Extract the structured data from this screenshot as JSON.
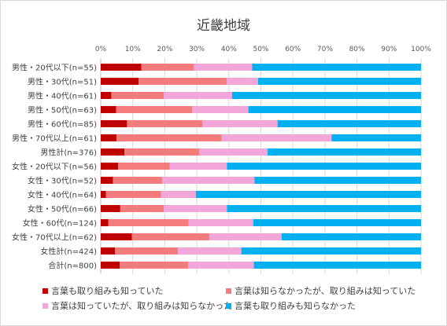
{
  "chart_data": {
    "type": "bar",
    "orientation": "horizontal",
    "stacked": "percent",
    "title": "近畿地域",
    "xlim": [
      0,
      100
    ],
    "x_ticks": [
      "0%",
      "10%",
      "20%",
      "30%",
      "40%",
      "50%",
      "60%",
      "70%",
      "80%",
      "90%",
      "100%"
    ],
    "grid": true,
    "legend_position": "bottom",
    "categories": [
      "男性・20代以下(n=55)",
      "男性・30代(n=51)",
      "男性・40代(n=61)",
      "男性・50代(n=63)",
      "男性・60代(n=85)",
      "男性・70代以上(n=61)",
      "男性計(n=376)",
      "女性・20代以下(n=56)",
      "女性・30代(n=52)",
      "女性・40代(n=64)",
      "女性・50代(n=66)",
      "女性・60代(n=124)",
      "女性・70代以上(n=62)",
      "女性計(n=424)",
      "合計(n=800)"
    ],
    "series": [
      {
        "name": "言葉も取り組みも知っていた",
        "color": "#c00000",
        "values": [
          12.7,
          11.8,
          3.3,
          4.8,
          8.2,
          4.9,
          7.4,
          5.4,
          3.8,
          1.6,
          6.1,
          2.4,
          9.7,
          4.5,
          5.9
        ]
      },
      {
        "name": "言葉は知らなかったが、取り組みは知っていた",
        "color": "#f47c7c",
        "values": [
          16.4,
          27.5,
          16.4,
          23.8,
          23.5,
          32.8,
          23.4,
          16.1,
          15.4,
          17.2,
          13.6,
          25.0,
          24.2,
          19.6,
          21.4
        ]
      },
      {
        "name": "言葉は知っていたが、取り組みは知らなかった",
        "color": "#f2a6da",
        "values": [
          18.2,
          9.8,
          21.3,
          17.5,
          23.5,
          34.4,
          21.3,
          17.9,
          28.8,
          10.9,
          19.7,
          20.2,
          22.6,
          19.8,
          20.5
        ]
      },
      {
        "name": "言葉も取り組みも知らなかった",
        "color": "#00b0f0",
        "values": [
          52.7,
          50.9,
          59.0,
          53.9,
          44.8,
          27.9,
          47.9,
          60.6,
          52.0,
          70.3,
          60.6,
          52.4,
          43.5,
          56.1,
          52.2
        ]
      }
    ]
  }
}
